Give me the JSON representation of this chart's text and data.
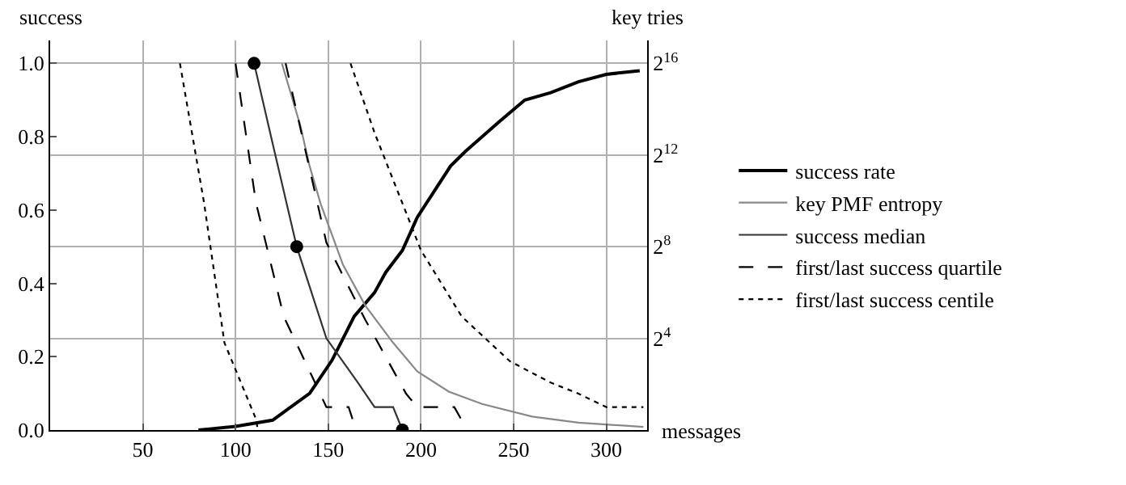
{
  "chart_data": {
    "type": "line",
    "xlabel": "messages",
    "ylabel": "success",
    "y2label": "key tries",
    "xlim": [
      0,
      322
    ],
    "xticks": [
      50,
      100,
      150,
      200,
      250,
      300
    ],
    "ylim": [
      0,
      1.0625
    ],
    "yticks": [
      {
        "value": 0,
        "label": "0.0"
      },
      {
        "value": 0.2,
        "label": "0.2"
      },
      {
        "value": 0.4,
        "label": "0.4"
      },
      {
        "value": 0.6,
        "label": "0.6"
      },
      {
        "value": 0.8,
        "label": "0.8"
      },
      {
        "value": 1,
        "label": "1.0"
      }
    ],
    "log": "y2",
    "y2lim": [
      1,
      131072
    ],
    "y2ticks": [
      {
        "value": 16,
        "label": "2$^{4}$"
      },
      {
        "value": 256,
        "label": "2$^{8}$"
      },
      {
        "value": 4096,
        "label": "2$^{12}$"
      },
      {
        "value": 65536,
        "label": "2$^{16}$"
      }
    ],
    "grid": true,
    "legend": "right",
    "marker": "none",
    "series": [
      {
        "name": "success rate",
        "color": "#000000",
        "x": [
          80,
          100,
          120,
          140,
          152,
          164,
          175,
          181,
          190,
          198,
          216,
          224,
          242,
          256,
          270,
          285,
          300,
          318
        ],
        "values": [
          0,
          0.01,
          0.027,
          0.1,
          0.19,
          0.31,
          0.375,
          0.43,
          0.49,
          0.58,
          0.72,
          0.76,
          0.84,
          0.9,
          0.92,
          0.95,
          0.97,
          0.98
        ]
      },
      {
        "name": "key PMF entropy",
        "color": "#888888",
        "axis": "y2",
        "x": [
          125,
          135,
          140,
          146,
          158,
          170,
          185,
          198,
          215,
          233,
          260,
          285,
          320
        ],
        "values": [
          65536,
          9900,
          2900,
          920,
          147,
          43,
          14,
          5.9,
          3.2,
          2.2,
          1.5,
          1.25,
          1.1
        ]
      },
      {
        "name": "success median",
        "color": "#333333",
        "axis": "y2",
        "x": [
          110,
          120,
          133,
          140,
          149,
          166,
          175,
          185,
          190
        ],
        "values": [
          65536,
          5800,
          256,
          76,
          16,
          4.2,
          2,
          2,
          1
        ]
      },
      {
        "name": "first/last success quartile",
        "color": "#000000",
        "axis": "y2",
        "line_style": "dashed",
        "x": [
          100,
          111,
          126,
          140,
          149,
          161,
          165
        ],
        "values": [
          65536,
          970,
          31,
          5.9,
          2,
          2,
          1
        ]
      },
      {
        "type": "line",
        "color": "#000000",
        "axis": "y2",
        "line_style": "dashed",
        "x": [
          127,
          149,
          161,
          170,
          192,
          198,
          218,
          225
        ],
        "values": [
          65536,
          290,
          76,
          28,
          3,
          2,
          2,
          1
        ]
      },
      {
        "name": "first/last success centile",
        "color": "#000000",
        "axis": "y2",
        "line_style": "dotted",
        "x": [
          70,
          83,
          94,
          111,
          112
        ],
        "values": [
          65536,
          970,
          14,
          1.4,
          1
        ]
      },
      {
        "type": "line",
        "color": "#000000",
        "axis": "y2",
        "line_style": "dotted",
        "x": [
          162,
          175,
          200,
          222,
          248,
          270,
          285,
          300,
          320
        ],
        "values": [
          65536,
          8000,
          230,
          31,
          8,
          4.2,
          3,
          2,
          2
        ]
      },
      {
        "type": "scatter",
        "color": "#000000",
        "axis": "y2",
        "marker": "circle",
        "x": [
          110,
          133,
          190
        ],
        "values": [
          65536,
          256,
          1
        ]
      }
    ]
  }
}
